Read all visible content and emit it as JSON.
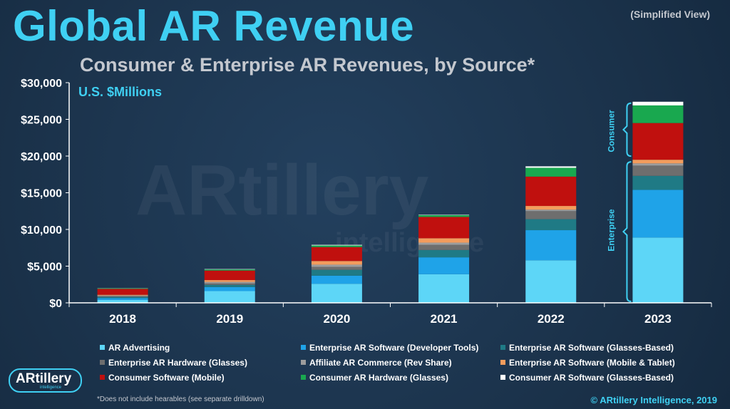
{
  "header": {
    "title": "Global AR Revenue",
    "subtitle": "Consumer & Enterprise AR Revenues, by Source*",
    "view_note": "(Simplified View)",
    "units": "U.S. $Millions"
  },
  "watermark": {
    "text": "ARtillery",
    "subtext": "intelligence"
  },
  "brackets": {
    "consumer": "Consumer",
    "enterprise": "Enterprise"
  },
  "chart_data": {
    "type": "bar",
    "stacked": true,
    "title": "Global AR Revenue",
    "subtitle": "Consumer & Enterprise AR Revenues, by Source*",
    "ylabel": "U.S. $Millions",
    "ylim": [
      0,
      30000
    ],
    "yticks": [
      "$0",
      "$5,000",
      "$10,000",
      "$15,000",
      "$20,000",
      "$25,000",
      "$30,000"
    ],
    "grid": false,
    "legend_position": "bottom",
    "categories": [
      "2018",
      "2019",
      "2020",
      "2021",
      "2022",
      "2023"
    ],
    "series": [
      {
        "name": "AR Advertising",
        "color": "#5dd6f7",
        "values": [
          400,
          1600,
          2600,
          3900,
          5800,
          8900
        ]
      },
      {
        "name": "Enterprise AR Software (Developer Tools)",
        "color": "#1fa3e8",
        "values": [
          250,
          550,
          1100,
          2300,
          4100,
          6500
        ]
      },
      {
        "name": "Enterprise AR Software (Glasses-Based)",
        "color": "#1f7a85",
        "values": [
          150,
          300,
          800,
          1000,
          1500,
          1900
        ]
      },
      {
        "name": "Enterprise AR Hardware (Glasses)",
        "color": "#6e6e6e",
        "values": [
          100,
          200,
          400,
          700,
          1100,
          1400
        ]
      },
      {
        "name": "Affiliate AR Commerce (Rev Share)",
        "color": "#9d9d9d",
        "values": [
          100,
          200,
          300,
          300,
          200,
          300
        ]
      },
      {
        "name": "Enterprise AR Software (Mobile & Tablet)",
        "color": "#f39c5d",
        "values": [
          100,
          250,
          500,
          600,
          500,
          500
        ]
      },
      {
        "name": "Consumer Software (Mobile)",
        "color": "#c0100e",
        "values": [
          800,
          1300,
          1900,
          2900,
          4000,
          5000
        ]
      },
      {
        "name": "Consumer AR Hardware (Glasses)",
        "color": "#19a84f",
        "values": [
          80,
          150,
          220,
          250,
          1200,
          2400
        ]
      },
      {
        "name": "Consumer AR Software (Glasses-Based)",
        "color": "#ffffff",
        "values": [
          20,
          50,
          80,
          50,
          200,
          500
        ]
      }
    ]
  },
  "footnote": "*Does not include hearables (see separate drilldown)",
  "copyright": "© ARtillery Intelligence, 2019",
  "logo": {
    "name": "ARtillery",
    "tagline": "intelligence"
  }
}
